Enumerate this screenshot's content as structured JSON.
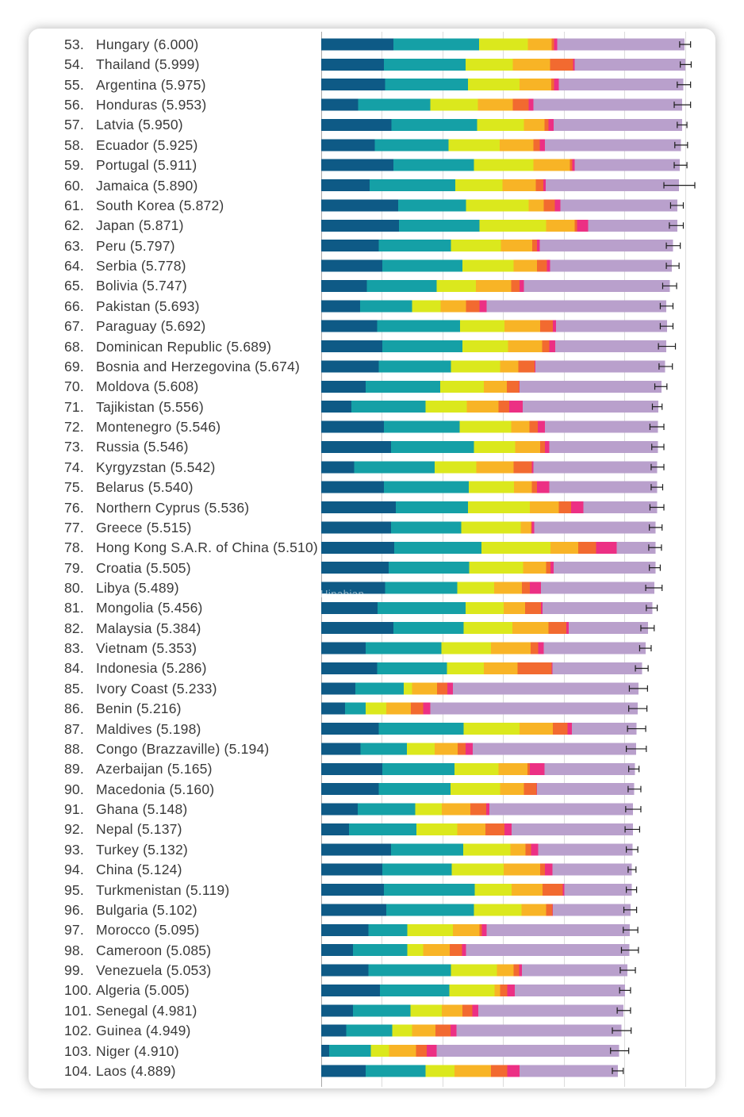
{
  "watermark": {
    "text": "Hinabian"
  },
  "chart_data": {
    "type": "bar",
    "orientation": "horizontal",
    "stacked": true,
    "title": "",
    "xlabel": "",
    "ylabel": "",
    "xlim": [
      0,
      6.5
    ],
    "grid": true,
    "grid_step": 1,
    "legend": "none",
    "segment_colors": [
      "#0e5a86",
      "#15a0a6",
      "#dbe81d",
      "#f8b426",
      "#f26a30",
      "#ec3084",
      "#b9a0cc"
    ],
    "error_bar_color": "#1e1e1e",
    "rows": [
      {
        "rank": "53.",
        "label": "Hungary (6.000)",
        "segments": [
          1.19,
          1.41,
          0.81,
          0.39,
          0.04,
          0.05,
          2.1
        ],
        "ci": [
          5.91,
          6.09
        ]
      },
      {
        "rank": "54.",
        "label": "Thailand (5.999)",
        "segments": [
          1.03,
          1.35,
          0.78,
          0.61,
          0.38,
          0.03,
          1.82
        ],
        "ci": [
          5.92,
          6.1
        ]
      },
      {
        "rank": "55.",
        "label": "Argentina (5.975)",
        "segments": [
          1.05,
          1.37,
          0.85,
          0.52,
          0.05,
          0.08,
          2.05
        ],
        "ci": [
          5.87,
          6.09
        ]
      },
      {
        "rank": "56.",
        "label": "Honduras (5.953)",
        "segments": [
          0.61,
          1.19,
          0.78,
          0.58,
          0.26,
          0.08,
          2.45
        ],
        "ci": [
          5.82,
          6.09
        ]
      },
      {
        "rank": "57.",
        "label": "Latvia (5.950)",
        "segments": [
          1.16,
          1.41,
          0.77,
          0.34,
          0.07,
          0.08,
          2.12
        ],
        "ci": [
          5.87,
          6.03
        ]
      },
      {
        "rank": "58.",
        "label": "Ecuador (5.925)",
        "segments": [
          0.88,
          1.22,
          0.84,
          0.56,
          0.1,
          0.09,
          2.24
        ],
        "ci": [
          5.83,
          6.04
        ]
      },
      {
        "rank": "59.",
        "label": "Portugal (5.911)",
        "segments": [
          1.19,
          1.33,
          0.98,
          0.6,
          0.04,
          0.04,
          1.73
        ],
        "ci": [
          5.82,
          6.03
        ]
      },
      {
        "rank": "60.",
        "label": "Jamaica (5.890)",
        "segments": [
          0.8,
          1.41,
          0.78,
          0.55,
          0.12,
          0.04,
          2.2
        ],
        "ci": [
          5.65,
          6.16
        ]
      },
      {
        "rank": "61.",
        "label": "South Korea (5.872)",
        "segments": [
          1.27,
          1.12,
          1.03,
          0.25,
          0.18,
          0.09,
          1.93
        ],
        "ci": [
          5.76,
          5.97
        ]
      },
      {
        "rank": "62.",
        "label": "Japan (5.871)",
        "segments": [
          1.28,
          1.33,
          1.1,
          0.47,
          0.04,
          0.18,
          1.47
        ],
        "ci": [
          5.74,
          5.97
        ]
      },
      {
        "rank": "63.",
        "label": "Peru (5.797)",
        "segments": [
          0.95,
          1.19,
          0.82,
          0.52,
          0.08,
          0.04,
          2.2
        ],
        "ci": [
          5.69,
          5.92
        ]
      },
      {
        "rank": "64.",
        "label": "Serbia (5.778)",
        "segments": [
          1.01,
          1.32,
          0.84,
          0.39,
          0.16,
          0.05,
          2.01
        ],
        "ci": [
          5.69,
          5.9
        ]
      },
      {
        "rank": "65.",
        "label": "Bolivia (5.747)",
        "segments": [
          0.75,
          1.15,
          0.65,
          0.58,
          0.14,
          0.07,
          2.41
        ],
        "ci": [
          5.63,
          5.86
        ]
      },
      {
        "rank": "66.",
        "label": "Pakistan (5.693)",
        "segments": [
          0.64,
          0.86,
          0.47,
          0.42,
          0.22,
          0.12,
          2.96
        ],
        "ci": [
          5.59,
          5.8
        ]
      },
      {
        "rank": "67.",
        "label": "Paraguay (5.692)",
        "segments": [
          0.92,
          1.37,
          0.73,
          0.59,
          0.21,
          0.05,
          1.83
        ],
        "ci": [
          5.59,
          5.8
        ]
      },
      {
        "rank": "68.",
        "label": "Dominican Republic (5.689)",
        "segments": [
          1.01,
          1.32,
          0.75,
          0.56,
          0.12,
          0.1,
          1.83
        ],
        "ci": [
          5.56,
          5.84
        ]
      },
      {
        "rank": "69.",
        "label": "Bosnia and Herzegovina (5.674)",
        "segments": [
          0.95,
          1.19,
          0.81,
          0.3,
          0.27,
          0.01,
          2.14
        ],
        "ci": [
          5.57,
          5.79
        ]
      },
      {
        "rank": "70.",
        "label": "Moldova (5.608)",
        "segments": [
          0.73,
          1.23,
          0.72,
          0.38,
          0.2,
          0.01,
          2.34
        ],
        "ci": [
          5.5,
          5.7
        ]
      },
      {
        "rank": "71.",
        "label": "Tajikistan (5.556)",
        "segments": [
          0.5,
          1.22,
          0.68,
          0.52,
          0.18,
          0.22,
          2.24
        ],
        "ci": [
          5.46,
          5.62
        ]
      },
      {
        "rank": "72.",
        "label": "Montenegro (5.546)",
        "segments": [
          1.03,
          1.25,
          0.85,
          0.3,
          0.14,
          0.12,
          1.86
        ],
        "ci": [
          5.42,
          5.65
        ]
      },
      {
        "rank": "73.",
        "label": "Russia (5.546)",
        "segments": [
          1.15,
          1.37,
          0.68,
          0.41,
          0.08,
          0.07,
          1.79
        ],
        "ci": [
          5.45,
          5.65
        ]
      },
      {
        "rank": "74.",
        "label": "Kyrgyzstan (5.542)",
        "segments": [
          0.54,
          1.33,
          0.69,
          0.61,
          0.3,
          0.03,
          2.04
        ],
        "ci": [
          5.44,
          5.65
        ]
      },
      {
        "rank": "75.",
        "label": "Belarus (5.540)",
        "segments": [
          1.03,
          1.4,
          0.75,
          0.29,
          0.09,
          0.2,
          1.78
        ],
        "ci": [
          5.44,
          5.63
        ]
      },
      {
        "rank": "76.",
        "label": "Northern Cyprus (5.536)",
        "segments": [
          1.23,
          1.19,
          1.02,
          0.48,
          0.2,
          0.2,
          1.22
        ],
        "ci": [
          5.42,
          5.65
        ]
      },
      {
        "rank": "77.",
        "label": "Greece (5.515)",
        "segments": [
          1.15,
          1.16,
          0.98,
          0.17,
          0.01,
          0.04,
          2.0
        ],
        "ci": [
          5.41,
          5.62
        ]
      },
      {
        "rank": "78.",
        "label": "Hong Kong S.A.R. of China (5.510)",
        "segments": [
          1.2,
          1.44,
          1.14,
          0.46,
          0.29,
          0.34,
          0.64
        ],
        "ci": [
          5.4,
          5.61
        ]
      },
      {
        "rank": "79.",
        "label": "Croatia (5.505)",
        "segments": [
          1.11,
          1.33,
          0.89,
          0.38,
          0.07,
          0.05,
          1.68
        ],
        "ci": [
          5.41,
          5.59
        ]
      },
      {
        "rank": "80.",
        "label": "Libya (5.489)",
        "segments": [
          1.05,
          1.19,
          0.61,
          0.46,
          0.13,
          0.18,
          1.87
        ],
        "ci": [
          5.35,
          5.62
        ]
      },
      {
        "rank": "81.",
        "label": "Mongolia (5.456)",
        "segments": [
          0.93,
          1.45,
          0.63,
          0.35,
          0.26,
          0.03,
          1.81
        ],
        "ci": [
          5.36,
          5.54
        ]
      },
      {
        "rank": "82.",
        "label": "Malaysia (5.384)",
        "segments": [
          1.19,
          1.16,
          0.8,
          0.6,
          0.29,
          0.04,
          1.31
        ],
        "ci": [
          5.27,
          5.49
        ]
      },
      {
        "rank": "83.",
        "label": "Vietnam (5.353)",
        "segments": [
          0.73,
          1.25,
          0.82,
          0.65,
          0.13,
          0.09,
          1.68
        ],
        "ci": [
          5.25,
          5.44
        ]
      },
      {
        "rank": "84.",
        "label": "Indonesia (5.286)",
        "segments": [
          0.92,
          1.15,
          0.61,
          0.56,
          0.56,
          0.01,
          1.48
        ],
        "ci": [
          5.18,
          5.39
        ]
      },
      {
        "rank": "85.",
        "label": "Ivory Coast (5.233)",
        "segments": [
          0.56,
          0.8,
          0.14,
          0.41,
          0.17,
          0.09,
          3.06
        ],
        "ci": [
          5.08,
          5.38
        ]
      },
      {
        "rank": "86.",
        "label": "Benin (5.216)",
        "segments": [
          0.39,
          0.34,
          0.34,
          0.41,
          0.2,
          0.12,
          3.42
        ],
        "ci": [
          5.07,
          5.37
        ]
      },
      {
        "rank": "87.",
        "label": "Maldives (5.198)",
        "segments": [
          0.95,
          1.4,
          0.92,
          0.55,
          0.24,
          0.07,
          1.07
        ],
        "ci": [
          5.05,
          5.35
        ]
      },
      {
        "rank": "88.",
        "label": "Congo (Brazzaville) (5.194)",
        "segments": [
          0.65,
          0.76,
          0.46,
          0.38,
          0.13,
          0.12,
          2.69
        ],
        "ci": [
          5.03,
          5.36
        ]
      },
      {
        "rank": "89.",
        "label": "Azerbaijan (5.165)",
        "segments": [
          1.01,
          1.19,
          0.72,
          0.48,
          0.04,
          0.24,
          1.49
        ],
        "ci": [
          5.07,
          5.24
        ]
      },
      {
        "rank": "90.",
        "label": "Macedonia (5.160)",
        "segments": [
          0.95,
          1.18,
          0.82,
          0.39,
          0.21,
          0.01,
          1.6
        ],
        "ci": [
          5.06,
          5.27
        ]
      },
      {
        "rank": "91.",
        "label": "Ghana (5.148)",
        "segments": [
          0.6,
          0.95,
          0.44,
          0.47,
          0.26,
          0.05,
          2.37
        ],
        "ci": [
          5.02,
          5.27
        ]
      },
      {
        "rank": "92.",
        "label": "Nepal (5.137)",
        "segments": [
          0.46,
          1.11,
          0.67,
          0.47,
          0.31,
          0.12,
          2.0
        ],
        "ci": [
          5.01,
          5.25
        ]
      },
      {
        "rank": "93.",
        "label": "Turkey (5.132)",
        "segments": [
          1.15,
          1.19,
          0.78,
          0.25,
          0.09,
          0.12,
          1.55
        ],
        "ci": [
          5.03,
          5.22
        ]
      },
      {
        "rank": "94.",
        "label": "China (5.124)",
        "segments": [
          1.01,
          1.14,
          0.86,
          0.6,
          0.08,
          0.12,
          1.31
        ],
        "ci": [
          5.06,
          5.19
        ]
      },
      {
        "rank": "95.",
        "label": "Turkmenistan (5.119)",
        "segments": [
          1.03,
          1.5,
          0.61,
          0.51,
          0.33,
          0.03,
          1.11
        ],
        "ci": [
          5.03,
          5.2
        ]
      },
      {
        "rank": "96.",
        "label": "Bulgaria (5.102)",
        "segments": [
          1.07,
          1.45,
          0.78,
          0.41,
          0.1,
          0.01,
          1.28
        ],
        "ci": [
          4.99,
          5.2
        ]
      },
      {
        "rank": "97.",
        "label": "Morocco (5.095)",
        "segments": [
          0.78,
          0.64,
          0.75,
          0.44,
          0.04,
          0.08,
          2.36
        ],
        "ci": [
          4.98,
          5.22
        ]
      },
      {
        "rank": "98.",
        "label": "Cameroon (5.085)",
        "segments": [
          0.52,
          0.9,
          0.26,
          0.44,
          0.2,
          0.07,
          2.69
        ],
        "ci": [
          4.95,
          5.23
        ]
      },
      {
        "rank": "99.",
        "label": "Venezuela (5.053)",
        "segments": [
          0.78,
          1.36,
          0.76,
          0.27,
          0.09,
          0.05,
          1.74
        ],
        "ci": [
          4.93,
          5.18
        ]
      },
      {
        "rank": "100.",
        "label": "Algeria (5.005)",
        "segments": [
          0.97,
          1.14,
          0.75,
          0.09,
          0.12,
          0.12,
          1.82
        ],
        "ci": [
          4.92,
          5.1
        ]
      },
      {
        "rank": "101.",
        "label": "Senegal (4.981)",
        "segments": [
          0.52,
          0.95,
          0.52,
          0.34,
          0.16,
          0.1,
          2.39
        ],
        "ci": [
          4.88,
          5.1
        ]
      },
      {
        "rank": "102.",
        "label": "Guinea (4.949)",
        "segments": [
          0.41,
          0.76,
          0.33,
          0.38,
          0.25,
          0.1,
          2.72
        ],
        "ci": [
          4.8,
          5.11
        ]
      },
      {
        "rank": "103.",
        "label": "Niger (4.910)",
        "segments": [
          0.13,
          0.69,
          0.3,
          0.44,
          0.18,
          0.16,
          3.01
        ],
        "ci": [
          4.77,
          5.07
        ]
      },
      {
        "rank": "104.",
        "label": "Laos (4.889)",
        "segments": [
          0.73,
          0.99,
          0.48,
          0.6,
          0.27,
          0.2,
          1.62
        ],
        "ci": [
          4.8,
          4.98
        ]
      }
    ]
  }
}
